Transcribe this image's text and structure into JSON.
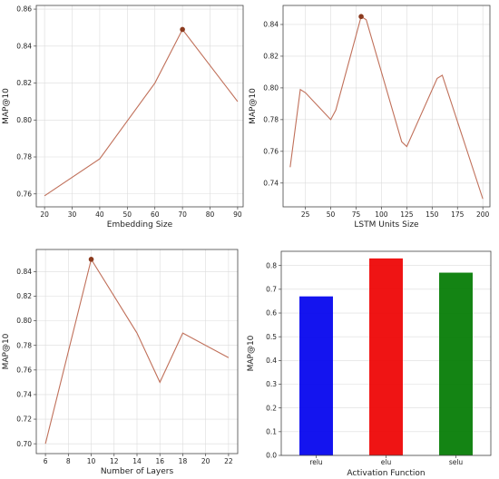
{
  "chart_data": [
    {
      "type": "line",
      "xlabel": "Embedding Size",
      "ylabel": "MAP@10",
      "x": [
        20,
        40,
        60,
        70,
        90
      ],
      "series": [
        {
          "values": [
            0.759,
            0.779,
            0.82,
            0.849,
            0.81
          ]
        }
      ],
      "highlight": {
        "x": 70,
        "y": 0.849
      },
      "xlim": [
        17,
        92
      ],
      "ylim": [
        0.753,
        0.862
      ],
      "xticks": [
        20,
        30,
        40,
        50,
        60,
        70,
        80,
        90
      ],
      "xtick_labels": [
        "20",
        "30",
        "40",
        "50",
        "60",
        "70",
        "80",
        "90"
      ],
      "yticks": [
        0.76,
        0.78,
        0.8,
        0.82,
        0.84,
        0.86
      ],
      "ytick_labels": [
        "0.76",
        "0.78",
        "0.80",
        "0.82",
        "0.84",
        "0.86"
      ],
      "grid": true,
      "line_color": "#c0705a",
      "marker_color": "#8b3a1e"
    },
    {
      "type": "line",
      "xlabel": "LSTM Units Size",
      "ylabel": "MAP@10",
      "x": [
        10,
        20,
        25,
        50,
        55,
        80,
        85,
        120,
        125,
        155,
        160,
        200
      ],
      "series": [
        {
          "values": [
            0.75,
            0.799,
            0.797,
            0.78,
            0.786,
            0.845,
            0.843,
            0.766,
            0.763,
            0.806,
            0.808,
            0.73
          ]
        }
      ],
      "highlight": {
        "x": 80,
        "y": 0.845
      },
      "xlim": [
        3,
        207
      ],
      "ylim": [
        0.725,
        0.852
      ],
      "xticks": [
        25,
        50,
        75,
        100,
        125,
        150,
        175,
        200
      ],
      "xtick_labels": [
        "25",
        "50",
        "75",
        "100",
        "125",
        "150",
        "175",
        "200"
      ],
      "yticks": [
        0.74,
        0.76,
        0.78,
        0.8,
        0.82,
        0.84
      ],
      "ytick_labels": [
        "0.74",
        "0.76",
        "0.78",
        "0.80",
        "0.82",
        "0.84"
      ],
      "grid": true,
      "line_color": "#c0705a",
      "marker_color": "#8b3a1e"
    },
    {
      "type": "line",
      "xlabel": "Number of Layers",
      "ylabel": "MAP@10",
      "x": [
        6,
        10,
        14,
        16,
        18,
        22
      ],
      "series": [
        {
          "values": [
            0.7,
            0.85,
            0.79,
            0.75,
            0.79,
            0.77
          ]
        }
      ],
      "highlight": {
        "x": 10,
        "y": 0.85
      },
      "xlim": [
        5.2,
        22.8
      ],
      "ylim": [
        0.692,
        0.858
      ],
      "xticks": [
        6,
        8,
        10,
        12,
        14,
        16,
        18,
        20,
        22
      ],
      "xtick_labels": [
        "6",
        "8",
        "10",
        "12",
        "14",
        "16",
        "18",
        "20",
        "22"
      ],
      "yticks": [
        0.7,
        0.72,
        0.74,
        0.76,
        0.78,
        0.8,
        0.82,
        0.84
      ],
      "ytick_labels": [
        "0.70",
        "0.72",
        "0.74",
        "0.76",
        "0.78",
        "0.80",
        "0.82",
        "0.84"
      ],
      "grid": true,
      "line_color": "#c0705a",
      "marker_color": "#8b3a1e"
    },
    {
      "type": "bar",
      "xlabel": "Activation Function",
      "ylabel": "MAP@10",
      "categories": [
        "relu",
        "elu",
        "selu"
      ],
      "values": [
        0.67,
        0.83,
        0.77
      ],
      "bar_colors": [
        "#0000ee",
        "#ee0000",
        "#007a00"
      ],
      "ylim": [
        0,
        0.86
      ],
      "yticks": [
        0.0,
        0.1,
        0.2,
        0.3,
        0.4,
        0.5,
        0.6,
        0.7,
        0.8
      ],
      "ytick_labels": [
        "0.0",
        "0.1",
        "0.2",
        "0.3",
        "0.4",
        "0.5",
        "0.6",
        "0.7",
        "0.8"
      ],
      "grid": true
    }
  ]
}
